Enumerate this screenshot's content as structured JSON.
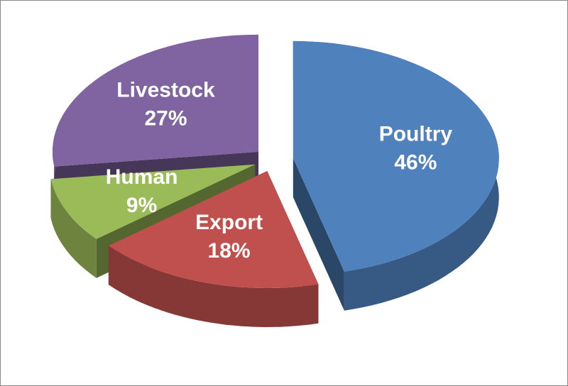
{
  "chart_data": {
    "type": "pie",
    "categories": [
      "Poultry",
      "Export",
      "Human",
      "Livestock"
    ],
    "values": [
      46,
      18,
      9,
      27
    ],
    "value_labels": [
      "46%",
      "18%",
      "9%",
      "27%"
    ],
    "colors": [
      "#4f81bd",
      "#c0504d",
      "#9bbb59",
      "#8064a2"
    ]
  }
}
